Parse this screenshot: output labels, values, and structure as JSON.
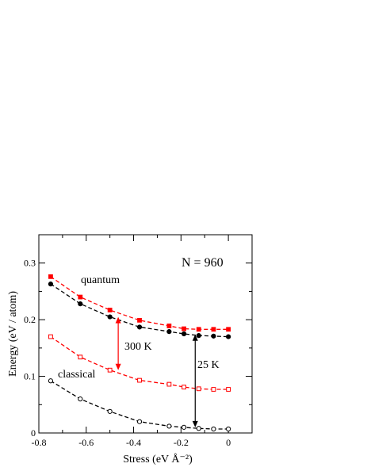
{
  "chart_data": {
    "type": "line",
    "xlabel": "Stress   (eV Å⁻²)",
    "ylabel": "Energy  (eV / atom)",
    "xlim": [
      -0.8,
      0.1
    ],
    "ylim": [
      0,
      0.35
    ],
    "x_ticks": [
      -0.8,
      -0.6,
      -0.4,
      -0.2,
      0
    ],
    "x_tick_labels": [
      "-0.8",
      "-0.6",
      "-0.4",
      "-0.2",
      "0"
    ],
    "y_ticks": [
      0,
      0.1,
      0.2,
      0.3
    ],
    "y_tick_labels": [
      "0",
      "0.1",
      "0.2",
      "0.3"
    ],
    "grid": false,
    "x": [
      -0.75,
      -0.625,
      -0.5,
      -0.375,
      -0.25,
      -0.1875,
      -0.125,
      -0.0625,
      0
    ],
    "series": [
      {
        "color": "#ff0000",
        "marker": "filled-square",
        "x": [
          -0.75,
          -0.625,
          -0.5,
          -0.375,
          -0.25,
          -0.1875,
          -0.125,
          -0.0625,
          0
        ],
        "values": [
          0.276,
          0.24,
          0.217,
          0.199,
          0.189,
          0.184,
          0.183,
          0.183,
          0.183
        ]
      },
      {
        "color": "#000000",
        "marker": "filled-circle",
        "x": [
          -0.75,
          -0.625,
          -0.5,
          -0.375,
          -0.25,
          -0.1875,
          -0.125,
          -0.0625,
          0
        ],
        "values": [
          0.263,
          0.228,
          0.205,
          0.187,
          0.179,
          0.175,
          0.172,
          0.171,
          0.17
        ]
      },
      {
        "color": "#ff0000",
        "marker": "open-square",
        "x": [
          -0.75,
          -0.625,
          -0.5,
          -0.375,
          -0.25,
          -0.1875,
          -0.125,
          -0.0625,
          0
        ],
        "values": [
          0.17,
          0.134,
          0.111,
          0.093,
          0.086,
          0.081,
          0.078,
          0.077,
          0.077
        ]
      },
      {
        "color": "#000000",
        "marker": "open-circle",
        "x": [
          -0.75,
          -0.625,
          -0.5,
          -0.375,
          -0.25,
          -0.1875,
          -0.125,
          -0.0625,
          0
        ],
        "values": [
          0.092,
          0.06,
          0.038,
          0.02,
          0.012,
          0.01,
          0.008,
          0.007,
          0.007
        ]
      }
    ],
    "annotations": {
      "n_label": "N = 960",
      "quantum_label": "quantum",
      "classical_label": "classical",
      "label_300k": "300 K",
      "label_25k": "25 K"
    },
    "arrows": [
      {
        "color": "#ff0000",
        "x": -0.465,
        "y_from": 0.205,
        "y_to": 0.111
      },
      {
        "color": "#000000",
        "x": -0.14,
        "y_from": 0.174,
        "y_to": 0.01
      }
    ]
  }
}
